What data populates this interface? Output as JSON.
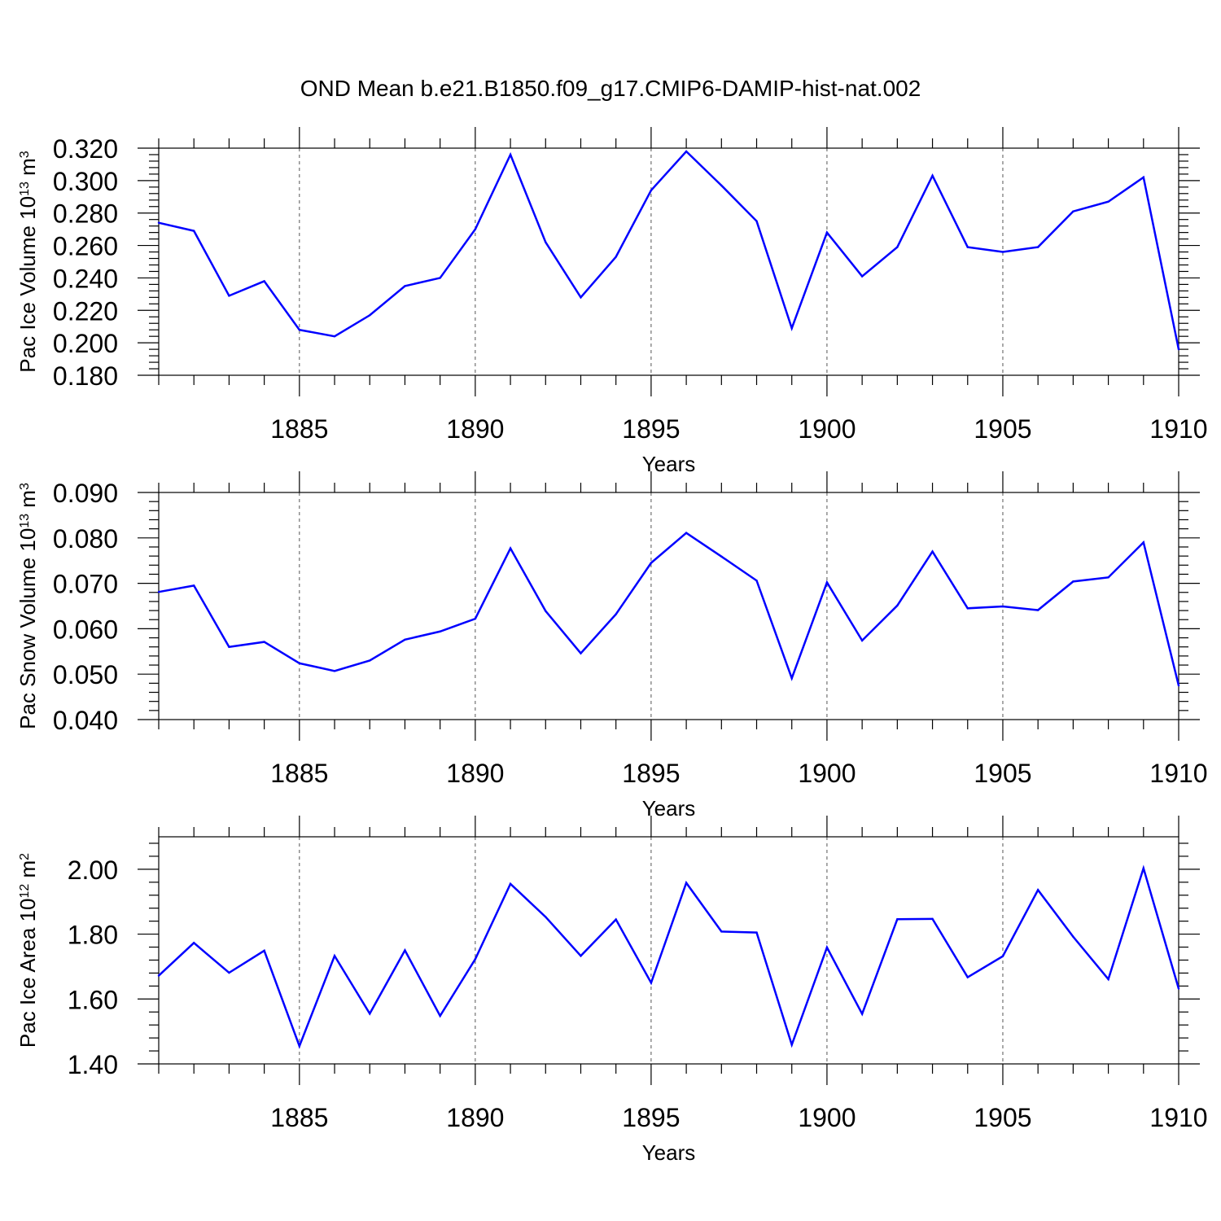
{
  "title": "OND Mean b.e21.B1850.f09_g17.CMIP6-DAMIP-hist-nat.002",
  "line_color": "#0000ff",
  "chart_data": [
    {
      "type": "line",
      "ylabel_main": "Pac Ice Volume 10",
      "ylabel_exp": "13",
      "ylabel_unit": " m",
      "ylabel_unit_exp": "3",
      "xlabel": "Years",
      "xlim": [
        1881,
        1910
      ],
      "ylim": [
        0.18,
        0.32
      ],
      "ytick_values": [
        0.18,
        0.2,
        0.22,
        0.24,
        0.26,
        0.28,
        0.3,
        0.32
      ],
      "ytick_labels": [
        "0.180",
        "0.200",
        "0.220",
        "0.240",
        "0.260",
        "0.280",
        "0.300",
        "0.320"
      ],
      "xtick_values": [
        1885,
        1890,
        1895,
        1900,
        1905,
        1910
      ],
      "xtick_labels": [
        "1885",
        "1890",
        "1895",
        "1900",
        "1905",
        "1910"
      ],
      "x": [
        1881,
        1882,
        1883,
        1884,
        1885,
        1886,
        1887,
        1888,
        1889,
        1890,
        1891,
        1892,
        1893,
        1894,
        1895,
        1896,
        1897,
        1898,
        1899,
        1900,
        1901,
        1902,
        1903,
        1904,
        1905,
        1906,
        1907,
        1908,
        1909,
        1910
      ],
      "series": [
        {
          "values": [
            0.274,
            0.269,
            0.229,
            0.238,
            0.208,
            0.204,
            0.217,
            0.235,
            0.24,
            0.27,
            0.316,
            0.262,
            0.228,
            0.253,
            0.294,
            0.318,
            0.297,
            0.275,
            0.209,
            0.268,
            0.241,
            0.259,
            0.303,
            0.259,
            0.256,
            0.259,
            0.281,
            0.287,
            0.302,
            0.196
          ]
        }
      ]
    },
    {
      "type": "line",
      "ylabel_main": "Pac Snow Volume 10",
      "ylabel_exp": "13",
      "ylabel_unit": " m",
      "ylabel_unit_exp": "3",
      "xlabel": "Years",
      "xlim": [
        1881,
        1910
      ],
      "ylim": [
        0.04,
        0.09
      ],
      "ytick_values": [
        0.04,
        0.05,
        0.06,
        0.07,
        0.08,
        0.09
      ],
      "ytick_labels": [
        "0.040",
        "0.050",
        "0.060",
        "0.070",
        "0.080",
        "0.090"
      ],
      "xtick_values": [
        1885,
        1890,
        1895,
        1900,
        1905,
        1910
      ],
      "xtick_labels": [
        "1885",
        "1890",
        "1895",
        "1900",
        "1905",
        "1910"
      ],
      "x": [
        1881,
        1882,
        1883,
        1884,
        1885,
        1886,
        1887,
        1888,
        1889,
        1890,
        1891,
        1892,
        1893,
        1894,
        1895,
        1896,
        1897,
        1898,
        1899,
        1900,
        1901,
        1902,
        1903,
        1904,
        1905,
        1906,
        1907,
        1908,
        1909,
        1910
      ],
      "series": [
        {
          "values": [
            0.0681,
            0.0695,
            0.056,
            0.0571,
            0.0524,
            0.0507,
            0.053,
            0.0576,
            0.0594,
            0.0622,
            0.0777,
            0.0639,
            0.0546,
            0.0632,
            0.0745,
            0.0811,
            0.0759,
            0.0706,
            0.0491,
            0.0702,
            0.0574,
            0.0651,
            0.077,
            0.0645,
            0.0649,
            0.0641,
            0.0704,
            0.0713,
            0.079,
            0.0475
          ]
        }
      ]
    },
    {
      "type": "line",
      "ylabel_main": "Pac Ice Area 10",
      "ylabel_exp": "12",
      "ylabel_unit": " m",
      "ylabel_unit_exp": "2",
      "xlabel": "Years",
      "xlim": [
        1881,
        1910
      ],
      "ylim": [
        1.4,
        2.1
      ],
      "ytick_values": [
        1.4,
        1.6,
        1.8,
        2.0
      ],
      "ytick_labels": [
        "1.40",
        "1.60",
        "1.80",
        "2.00"
      ],
      "xtick_values": [
        1885,
        1890,
        1895,
        1900,
        1905,
        1910
      ],
      "xtick_labels": [
        "1885",
        "1890",
        "1895",
        "1900",
        "1905",
        "1910"
      ],
      "x": [
        1881,
        1882,
        1883,
        1884,
        1885,
        1886,
        1887,
        1888,
        1889,
        1890,
        1891,
        1892,
        1893,
        1894,
        1895,
        1896,
        1897,
        1898,
        1899,
        1900,
        1901,
        1902,
        1903,
        1904,
        1905,
        1906,
        1907,
        1908,
        1909,
        1910
      ],
      "series": [
        {
          "values": [
            1.672,
            1.773,
            1.681,
            1.749,
            1.455,
            1.733,
            1.555,
            1.75,
            1.548,
            1.723,
            1.955,
            1.853,
            1.733,
            1.845,
            1.65,
            1.958,
            1.808,
            1.805,
            1.459,
            1.759,
            1.554,
            1.846,
            1.847,
            1.667,
            1.732,
            1.936,
            1.792,
            1.661,
            2.003,
            1.632
          ]
        }
      ]
    }
  ]
}
